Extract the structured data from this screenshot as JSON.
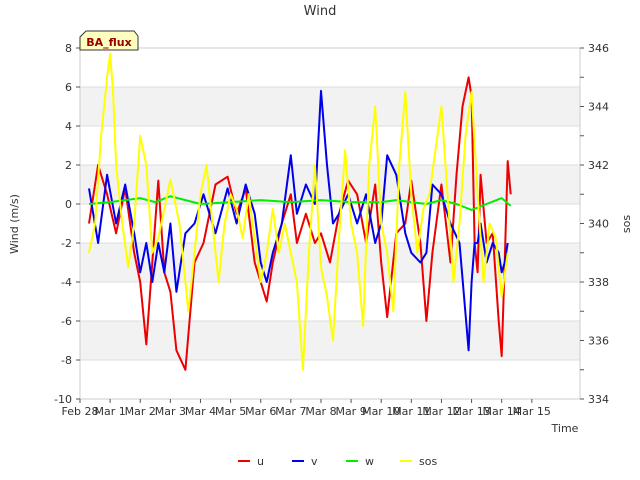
{
  "chart_data": {
    "type": "line",
    "title": "Wind",
    "xlabel": "Time",
    "ylabel": "Wind (m/s)",
    "y2label": "sos",
    "badge": "BA_flux",
    "xlim": [
      0,
      16.6
    ],
    "ylim": [
      -10,
      8
    ],
    "y2lim": [
      334,
      346
    ],
    "x_ticks": [
      {
        "pos": 0,
        "label": "Feb 28"
      },
      {
        "pos": 1,
        "label": "Mar 1"
      },
      {
        "pos": 2,
        "label": "Mar 2"
      },
      {
        "pos": 3,
        "label": "Mar 3"
      },
      {
        "pos": 4,
        "label": "Mar 4"
      },
      {
        "pos": 5,
        "label": "Mar 5"
      },
      {
        "pos": 6,
        "label": "Mar 6"
      },
      {
        "pos": 7,
        "label": "Mar 7"
      },
      {
        "pos": 8,
        "label": "Mar 8"
      },
      {
        "pos": 9,
        "label": "Mar 9"
      },
      {
        "pos": 10,
        "label": "Mar 10"
      },
      {
        "pos": 11,
        "label": "Mar 11"
      },
      {
        "pos": 12,
        "label": "Mar 12"
      },
      {
        "pos": 13,
        "label": "Mar 13"
      },
      {
        "pos": 14,
        "label": "Mar 14"
      },
      {
        "pos": 15,
        "label": "Mar 15"
      }
    ],
    "y_ticks": [
      "-10",
      "-8",
      "-6",
      "-4",
      "-2",
      "0",
      "2",
      "4",
      "6",
      "8"
    ],
    "y2_ticks": [
      "334",
      "336",
      "338",
      "340",
      "342",
      "344",
      "346"
    ],
    "series": [
      {
        "name": "u",
        "color": "#ee0000",
        "axis": "left",
        "x": [
          0.3,
          0.6,
          0.9,
          1.2,
          1.5,
          1.8,
          2.0,
          2.2,
          2.4,
          2.6,
          2.8,
          3.0,
          3.2,
          3.5,
          3.8,
          4.1,
          4.5,
          4.9,
          5.2,
          5.5,
          5.8,
          6.0,
          6.2,
          6.4,
          6.7,
          7.0,
          7.2,
          7.5,
          7.8,
          8.0,
          8.3,
          8.6,
          8.9,
          9.2,
          9.5,
          9.8,
          10.0,
          10.2,
          10.5,
          10.8,
          11.0,
          11.3,
          11.5,
          11.7,
          12.0,
          12.3,
          12.5,
          12.7,
          12.9,
          13.0,
          13.1,
          13.2,
          13.3,
          13.5,
          13.7,
          13.9,
          14.0,
          14.1,
          14.2,
          14.3
        ],
        "y": [
          -1.0,
          2.0,
          0.5,
          -1.5,
          0.8,
          -2.5,
          -4.0,
          -7.2,
          -3.0,
          1.2,
          -3.5,
          -4.5,
          -7.5,
          -8.5,
          -3.0,
          -2.0,
          1.0,
          1.4,
          -0.5,
          0.8,
          -3.0,
          -4.0,
          -5.0,
          -3.0,
          -1.0,
          0.5,
          -2.0,
          -0.5,
          -2.0,
          -1.5,
          -3.0,
          -0.5,
          1.2,
          0.5,
          -2.0,
          1.0,
          -3.0,
          -5.8,
          -1.5,
          -1.0,
          1.2,
          -2.0,
          -6.0,
          -2.5,
          1.0,
          -3.0,
          1.5,
          5.0,
          6.5,
          5.5,
          -2.0,
          -3.5,
          1.5,
          -2.0,
          -1.5,
          -6.0,
          -7.8,
          -3.0,
          2.2,
          0.5
        ]
      },
      {
        "name": "v",
        "color": "#0000ee",
        "axis": "left",
        "x": [
          0.3,
          0.6,
          0.9,
          1.2,
          1.5,
          1.8,
          2.0,
          2.2,
          2.4,
          2.6,
          2.8,
          3.0,
          3.2,
          3.5,
          3.8,
          4.1,
          4.5,
          4.9,
          5.2,
          5.5,
          5.8,
          6.0,
          6.2,
          6.4,
          6.7,
          7.0,
          7.2,
          7.5,
          7.8,
          8.0,
          8.2,
          8.4,
          8.6,
          8.9,
          9.2,
          9.5,
          9.8,
          10.0,
          10.2,
          10.5,
          10.8,
          11.0,
          11.3,
          11.5,
          11.7,
          12.0,
          12.3,
          12.6,
          12.9,
          13.0,
          13.1,
          13.2,
          13.3,
          13.5,
          13.7,
          13.9,
          14.0,
          14.1,
          14.2
        ],
        "y": [
          0.8,
          -2.0,
          1.5,
          -1.0,
          1.0,
          -1.5,
          -3.5,
          -2.0,
          -4.0,
          -2.0,
          -3.5,
          -1.0,
          -4.5,
          -1.5,
          -1.0,
          0.5,
          -1.5,
          0.8,
          -1.0,
          1.0,
          -0.5,
          -3.0,
          -4.0,
          -2.5,
          -1.0,
          2.5,
          -0.5,
          1.0,
          0.0,
          5.8,
          2.0,
          -1.0,
          -0.5,
          0.5,
          -1.0,
          0.5,
          -2.0,
          -1.0,
          2.5,
          1.5,
          -1.5,
          -2.5,
          -3.0,
          -2.5,
          1.0,
          0.5,
          -1.0,
          -2.0,
          -7.5,
          -4.0,
          -2.0,
          -2.0,
          -1.0,
          -3.0,
          -2.0,
          -2.5,
          -3.5,
          -3.0,
          -2.0
        ]
      },
      {
        "name": "w",
        "color": "#00ee00",
        "axis": "left",
        "x": [
          0.3,
          1.0,
          2.0,
          2.5,
          3.0,
          3.5,
          4.0,
          5.0,
          6.0,
          7.0,
          8.0,
          9.0,
          10.0,
          10.5,
          11.0,
          11.5,
          12.0,
          12.5,
          13.0,
          13.5,
          14.0,
          14.3
        ],
        "y": [
          0.0,
          0.1,
          0.3,
          0.1,
          0.4,
          0.2,
          0.0,
          0.1,
          0.2,
          0.1,
          0.2,
          0.1,
          0.1,
          0.2,
          0.1,
          0.0,
          0.2,
          0.0,
          -0.3,
          0.0,
          0.3,
          -0.1
        ]
      },
      {
        "name": "sos",
        "color": "#ffff00",
        "axis": "right",
        "x": [
          0.3,
          0.5,
          0.7,
          0.9,
          1.0,
          1.1,
          1.2,
          1.4,
          1.6,
          1.8,
          2.0,
          2.2,
          2.4,
          2.6,
          2.8,
          3.0,
          3.3,
          3.6,
          3.8,
          4.0,
          4.2,
          4.4,
          4.6,
          4.8,
          5.0,
          5.2,
          5.4,
          5.6,
          5.8,
          6.0,
          6.2,
          6.4,
          6.6,
          6.8,
          7.0,
          7.2,
          7.4,
          7.6,
          7.8,
          8.0,
          8.2,
          8.4,
          8.6,
          8.8,
          9.0,
          9.2,
          9.4,
          9.6,
          9.8,
          10.0,
          10.2,
          10.4,
          10.6,
          10.8,
          11.0,
          11.2,
          11.4,
          11.6,
          11.8,
          12.0,
          12.2,
          12.4,
          12.6,
          12.8,
          13.0,
          13.2,
          13.4,
          13.6,
          13.8,
          14.0,
          14.2
        ],
        "y": [
          339.0,
          340.0,
          343.0,
          345.0,
          345.8,
          344.5,
          342.0,
          340.0,
          338.5,
          340.0,
          343.0,
          342.0,
          339.0,
          339.5,
          340.5,
          341.5,
          340.0,
          337.0,
          339.0,
          341.0,
          342.0,
          340.0,
          338.0,
          340.0,
          341.0,
          340.5,
          339.5,
          341.0,
          339.5,
          338.0,
          339.0,
          340.5,
          339.0,
          340.0,
          339.0,
          338.0,
          335.0,
          339.0,
          342.0,
          338.5,
          337.5,
          336.0,
          339.5,
          342.5,
          340.0,
          339.0,
          336.5,
          342.0,
          344.0,
          340.0,
          339.0,
          337.0,
          342.0,
          344.5,
          341.0,
          339.0,
          340.5,
          341.0,
          342.5,
          344.0,
          341.0,
          338.0,
          340.0,
          343.0,
          344.5,
          341.0,
          338.0,
          340.0,
          339.5,
          337.5,
          339.0
        ]
      }
    ],
    "legend": [
      "u",
      "v",
      "w",
      "sos"
    ],
    "legend_position": "bottom-center",
    "grid": "horizontal bands"
  }
}
